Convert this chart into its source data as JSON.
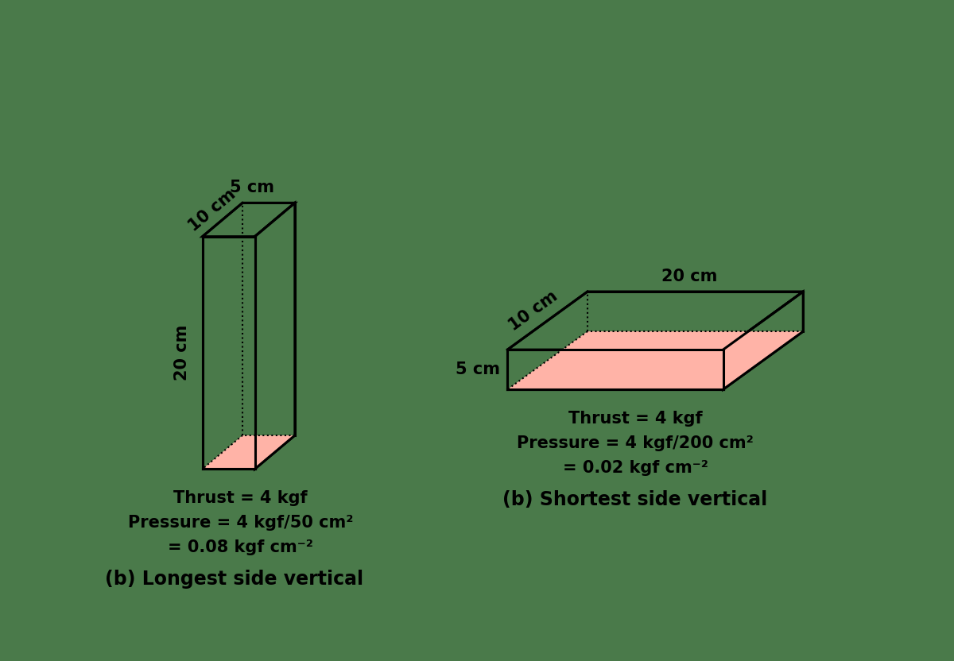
{
  "bg_color": "#4a7a4a",
  "box_face_color": "#4a7a4a",
  "box_edge_color": "#000000",
  "pink_color": "#ffb3a7",
  "text_color": "#000000",
  "box1": {
    "label_top": "5 cm",
    "label_depth": "10 cm",
    "label_height": "20 cm",
    "thrust_line1": "Thrust = 4 kgf",
    "thrust_line2": "Pressure = 4 kgf/50 cm²",
    "thrust_line3": "= 0.08 kgf cm⁻²",
    "caption": "(b) Longest side vertical"
  },
  "box2": {
    "label_top": "20 cm",
    "label_depth": "10 cm",
    "label_height": "5 cm",
    "thrust_line1": "Thrust = 4 kgf",
    "thrust_line2": "Pressure = 4 kgf/200 cm²",
    "thrust_line3": "= 0.02 kgf cm⁻²",
    "caption": "(b) Shortest side vertical"
  },
  "lw": 2.2,
  "lw_dot": 1.5,
  "fontsize_label": 15,
  "fontsize_text": 15,
  "fontsize_caption": 17
}
